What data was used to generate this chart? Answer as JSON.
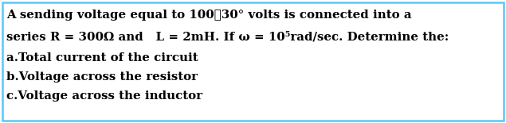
{
  "line1": "A sending voltage equal to 100⌀30° volts is connected into a",
  "line2": "series R = 300Ω and   L = 2mH. If ω = 10⁵rad/sec. Determine the:",
  "line3": "a.​Total current of the circuit",
  "line4": "b.​Voltage across the resistor",
  "line5": "c.​Voltage across the inductor",
  "bg_color": "#ffffff",
  "border_color": "#5bc8f5",
  "text_color": "#000000",
  "font_size": 10.8,
  "font_family": "serif"
}
